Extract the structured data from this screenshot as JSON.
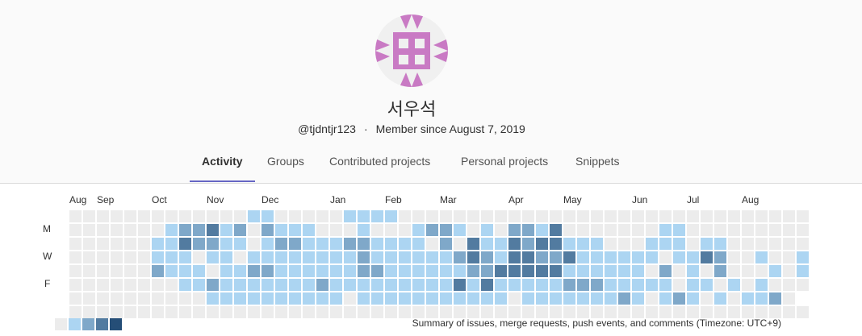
{
  "profile": {
    "name": "서우석",
    "username": "@tjdntjr123",
    "separator": "·",
    "member_since": "Member since August 7, 2019"
  },
  "tabs": [
    "Activity",
    "Groups",
    "Contributed projects",
    "Personal projects",
    "Snippets"
  ],
  "active_tab": "Activity",
  "calendar": {
    "months": [
      "Aug",
      "Sep",
      "Oct",
      "Nov",
      "Dec",
      "Jan",
      "Feb",
      "Mar",
      "Apr",
      "May",
      "Jun",
      "Jul",
      "Aug"
    ],
    "day_labels": [
      "M",
      "W",
      "F"
    ],
    "level_colors": [
      "#ececec",
      "#acd5f2",
      "#7fa8c9",
      "#527ba0",
      "#254e77"
    ],
    "rows": [
      "000000000000011000001111000000000000000000000000000000",
      "000000012231202111000100012210102213000000011000000000",
      "000000113221101221112211110203113233111000111011000000",
      "000000111011011111111211111123213322311111101132001001",
      "000000211101122111111221111112233333111111020102000101",
      "000000001121111111211111111131311111222111110110101000",
      "000000000011111111110111111111110111111121012101011200",
      "000000000000000000000000000000000000000000000000000000"
    ],
    "extra": [
      {
        "week": 22,
        "day": 6,
        "level": 1
      },
      {
        "week": 35,
        "day": 6,
        "level": 1
      },
      {
        "week": 37,
        "day": 6,
        "level": 1
      }
    ],
    "legend": [
      0,
      1,
      2,
      3,
      4
    ],
    "summary": "Summary of issues, merge requests, push events, and comments (Timezone: UTC+9)"
  }
}
